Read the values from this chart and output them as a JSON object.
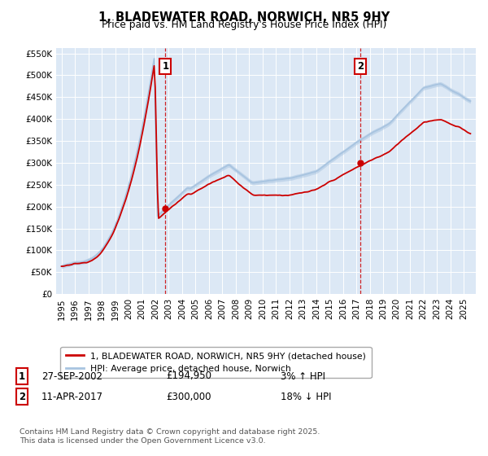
{
  "title": "1, BLADEWATER ROAD, NORWICH, NR5 9HY",
  "subtitle": "Price paid vs. HM Land Registry's House Price Index (HPI)",
  "legend_house": "1, BLADEWATER ROAD, NORWICH, NR5 9HY (detached house)",
  "legend_hpi": "HPI: Average price, detached house, Norwich",
  "footnote": "Contains HM Land Registry data © Crown copyright and database right 2025.\nThis data is licensed under the Open Government Licence v3.0.",
  "transaction1_date": "27-SEP-2002",
  "transaction1_price": 194950,
  "transaction1_note": "3% ↑ HPI",
  "transaction2_date": "11-APR-2017",
  "transaction2_price": 300000,
  "transaction2_note": "18% ↓ HPI",
  "hpi_color": "#a8c4e0",
  "house_color": "#cc0000",
  "vline_color": "#cc0000",
  "ylim": [
    0,
    562500
  ],
  "yticks": [
    0,
    50000,
    100000,
    150000,
    200000,
    250000,
    300000,
    350000,
    400000,
    450000,
    500000,
    550000
  ],
  "sale1_year": 2002.75,
  "sale2_year": 2017.28,
  "plot_bg": "#dce8f5",
  "grid_color": "#ffffff"
}
